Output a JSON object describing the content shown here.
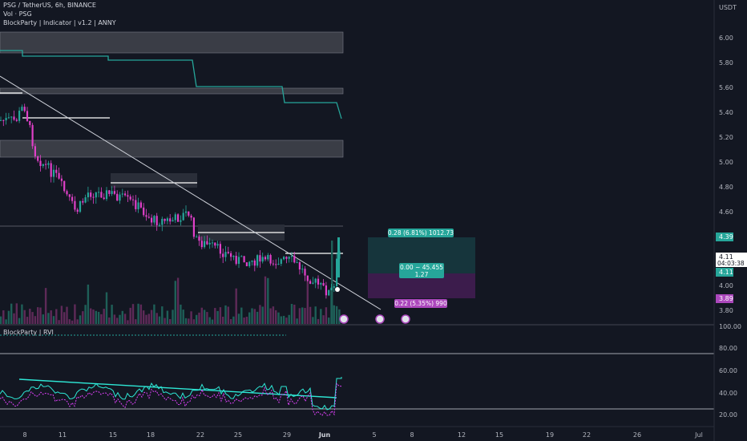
{
  "header": {
    "symbol_line": "PSG / TetherUS, 6h, BINANCE",
    "vol_line": "Vol · PSG",
    "indicator_line": "BlockParty | Indicator | v1.2 | ANNY",
    "rvi_label": "BlockParty | RVI",
    "currency": "USDT"
  },
  "chart_data": [
    {
      "type": "candlestick",
      "title": "PSG / TetherUS, 6h, BINANCE",
      "ylabel": "USDT",
      "ylim": [
        3.7,
        6.15
      ],
      "y_ticks": [
        "6.00",
        "5.80",
        "5.60",
        "5.40",
        "5.20",
        "5.00",
        "4.80",
        "4.60",
        "4.00",
        "3.80"
      ],
      "x_ticks": [
        "8",
        "11",
        "15",
        "18",
        "22",
        "25",
        "29",
        "Jun",
        "5",
        "8",
        "12",
        "15",
        "19",
        "22",
        "26",
        "Jul"
      ],
      "price_labels": {
        "upper": "4.39",
        "current": "4.11",
        "countdown": "04:03:38",
        "last": "4.11",
        "lower": "3.89"
      },
      "position_tool": {
        "target_label": "0.28 (6.81%) 1012.73",
        "center_label_1": "0.00 ~ 45.455",
        "center_label_2": "1.27",
        "stop_label": "0.22 (5.35%) 990",
        "entry": 4.11,
        "target": 4.39,
        "stop": 3.89
      },
      "series": [
        {
          "name": "Vol · PSG"
        }
      ],
      "grid": false,
      "legend": "top-left"
    },
    {
      "type": "line",
      "title": "BlockParty | RVI",
      "y_ticks": [
        "100.00",
        "80.00",
        "60.00",
        "40.00",
        "20.00"
      ],
      "ylim": [
        10,
        102
      ],
      "levels": [
        75,
        25
      ]
    }
  ],
  "colors": {
    "background": "#131722",
    "up": "#26a69a",
    "down": "#e040c8",
    "teal_line": "#26a69a",
    "trend_line": "#d1d4dc",
    "target_zone": "#26a69a",
    "stop_zone": "#9c27b0",
    "rvi_line": "#2ee8d6",
    "rvi_signal": "#e040fb"
  }
}
